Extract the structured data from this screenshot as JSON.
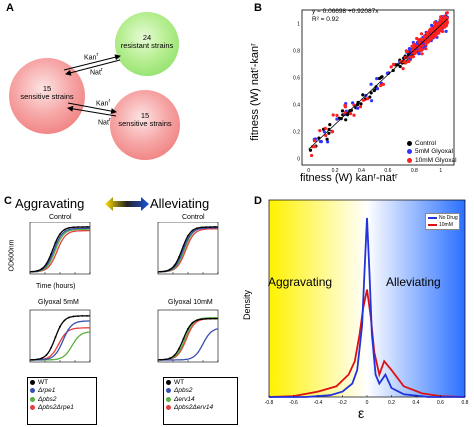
{
  "panelA": {
    "label": "A",
    "nodes": [
      {
        "count": "24",
        "text": "resistant strains"
      },
      {
        "count": "15",
        "text": "sensitive strains"
      },
      {
        "count": "15",
        "text": "sensitive strains"
      }
    ],
    "edge_labels": [
      "Kan",
      "Nat",
      "Kan",
      "Nat"
    ],
    "edge_superscript": "r",
    "colors": {
      "resistant": "#7cdb5a",
      "sensitive": "#f07070"
    }
  },
  "panelB": {
    "label": "B",
    "chart_data": {
      "type": "scatter",
      "equation": "y = 0.06698 +0.92087x",
      "r2": "R² = 0.92",
      "xlabel": "fitness (W) kanʳ-natʳ",
      "ylabel": "fitness (W) natʳ-kanʳ",
      "xticks": [
        "0",
        "0.2",
        "0.4",
        "0.6",
        "0.8",
        "1"
      ],
      "yticks": [
        "0",
        "0.2",
        "0.4",
        "0.6",
        "0.8",
        "1"
      ],
      "xlim": [
        -0.05,
        1.1
      ],
      "ylim": [
        -0.05,
        1.1
      ],
      "fit": {
        "intercept": 0.06698,
        "slope": 0.92087
      },
      "series": [
        {
          "name": "Control",
          "color": "#000000"
        },
        {
          "name": "5mM Glyoxal",
          "color": "#3333ff"
        },
        {
          "name": "10mM Glyoxal",
          "color": "#ff2020"
        }
      ],
      "legend_position": "bottom-right"
    }
  },
  "panelC": {
    "label": "C",
    "aggravating": "Aggravating",
    "alleviating": "Alleviating",
    "ylabel": "OD600nm",
    "xlabel": "Time (hours)",
    "left_titles": [
      "Control",
      "Glyoxal 5mM"
    ],
    "right_titles": [
      "Control",
      "Glyoxal 10mM"
    ],
    "left_legend": [
      "WT",
      "Δrpe1",
      "Δpbs2",
      "Δpbs2Δrpe1"
    ],
    "right_legend": [
      "WT",
      "Δpbs2",
      "Δerv14",
      "Δpbs2Δerv14"
    ],
    "legend_colors": [
      "#000000",
      "#3a50b0",
      "#5ab040",
      "#e04040"
    ]
  },
  "panelD": {
    "label": "D",
    "chart_data": {
      "type": "line",
      "xlabel": "ε",
      "ylabel": "Density",
      "xticks": [
        "-0.8",
        "-0.6",
        "-0.4",
        "-0.2",
        "0",
        "0.2",
        "0.4",
        "0.6",
        "0.8"
      ],
      "xlim": [
        -0.8,
        0.8
      ],
      "region_labels": [
        "Aggravating",
        "Alleviating"
      ],
      "series": [
        {
          "name": "No Drug",
          "color": "#2233dd",
          "x": [
            -0.8,
            -0.5,
            -0.3,
            -0.2,
            -0.12,
            -0.08,
            -0.04,
            -0.02,
            0.0,
            0.02,
            0.04,
            0.07,
            0.1,
            0.15,
            0.2,
            0.3,
            0.5,
            0.8
          ],
          "y": [
            0,
            0,
            0.2,
            0.6,
            1.5,
            3,
            8,
            14,
            20,
            14,
            7,
            2.5,
            1.5,
            2.5,
            1,
            0.3,
            0,
            0
          ]
        },
        {
          "name": "10mM",
          "color": "#dd1111",
          "x": [
            -0.8,
            -0.6,
            -0.4,
            -0.25,
            -0.15,
            -0.1,
            -0.06,
            -0.03,
            0.0,
            0.03,
            0.06,
            0.1,
            0.14,
            0.2,
            0.3,
            0.45,
            0.6,
            0.8
          ],
          "y": [
            0,
            0.1,
            0.6,
            1.2,
            2.5,
            4,
            7,
            10,
            12,
            9,
            5,
            2.5,
            4,
            3,
            1.2,
            0.4,
            0.1,
            0
          ]
        }
      ],
      "legend_position": "top-right"
    }
  }
}
